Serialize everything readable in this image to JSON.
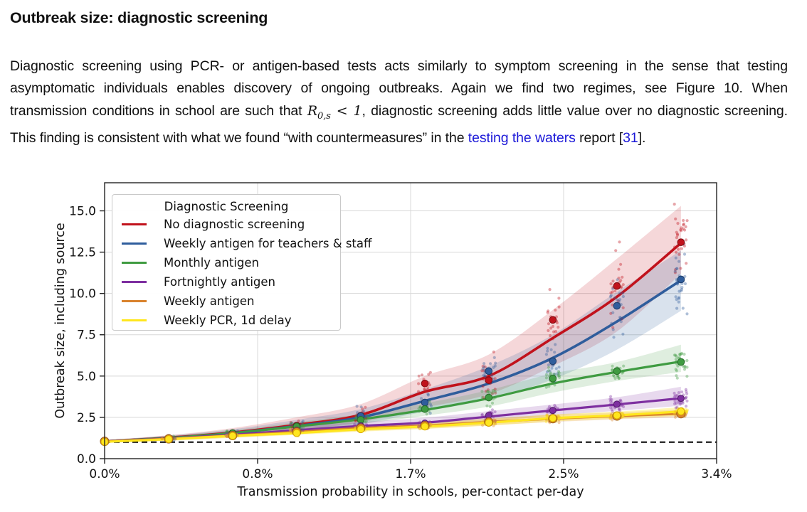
{
  "heading": "Outbreak size: diagnostic screening",
  "paragraph": {
    "segments": [
      {
        "k": "text",
        "t": "Diagnostic screening using PCR- or antigen-based tests acts similarly to symptom screening in the sense that testing asymptomatic individuals enables discovery of ongoing outbreaks. Again we find two regimes, see Figure 10. When transmission conditions in school are such that "
      },
      {
        "k": "math",
        "base": "R",
        "sub": "0,s",
        "rest": " < 1"
      },
      {
        "k": "text",
        "t": ", diagnostic screening adds little value over no diagnostic screening. This finding is consistent with what we found “with countermeasures” in the "
      },
      {
        "k": "link",
        "t": "testing the waters"
      },
      {
        "k": "text",
        "t": " report ["
      },
      {
        "k": "cite",
        "t": "31"
      },
      {
        "k": "text",
        "t": "]."
      }
    ],
    "link_color": "#1b18d8"
  },
  "chart_data": {
    "type": "line",
    "title": "",
    "xlabel": "Transmission probability in schools, per-contact per-day",
    "ylabel": "Outbreak size, including source",
    "xlim": [
      0,
      3.4
    ],
    "ylim": [
      0,
      16.7
    ],
    "grid": true,
    "xticks": [
      {
        "value": 0.0,
        "label": "0.0%"
      },
      {
        "value": 0.85,
        "label": "0.8%"
      },
      {
        "value": 1.7,
        "label": "1.7%"
      },
      {
        "value": 2.55,
        "label": "2.5%"
      },
      {
        "value": 3.4,
        "label": "3.4%"
      }
    ],
    "yticks": [
      {
        "value": 0.0,
        "label": "0.0"
      },
      {
        "value": 2.5,
        "label": "2.5"
      },
      {
        "value": 5.0,
        "label": "5.0"
      },
      {
        "value": 7.5,
        "label": "7.5"
      },
      {
        "value": 10.0,
        "label": "10.0"
      },
      {
        "value": 12.5,
        "label": "12.5"
      },
      {
        "value": 15.0,
        "label": "15.0"
      }
    ],
    "reference_line": {
      "y": 1.0,
      "style": "dashed",
      "color": "#000000"
    },
    "legend": {
      "title": "Diagnostic Screening",
      "position": "upper left"
    },
    "x": [
      0,
      0.356,
      0.711,
      1.067,
      1.423,
      1.779,
      2.134,
      2.49,
      2.846,
      3.202
    ],
    "series": [
      {
        "name": "No diagnostic screening",
        "color": "#c1121c",
        "edge": "#7f0b12",
        "band_alpha": 0.17,
        "means": [
          1.05,
          1.25,
          1.55,
          2.0,
          2.6,
          4.55,
          4.75,
          8.4,
          10.45,
          13.1
        ],
        "line": [
          1.05,
          1.27,
          1.58,
          2.05,
          2.65,
          4.05,
          5.0,
          7.3,
          9.8,
          13.05
        ],
        "band_lo": [
          1.0,
          1.15,
          1.4,
          1.75,
          2.2,
          3.1,
          3.9,
          5.6,
          7.7,
          11.2
        ],
        "band_hi": [
          1.12,
          1.42,
          1.85,
          2.5,
          3.3,
          5.0,
          6.3,
          9.0,
          12.1,
          15.3
        ]
      },
      {
        "name": "Weekly antigen for teachers & staff",
        "color": "#2f5d9c",
        "edge": "#1d3c69",
        "band_alpha": 0.18,
        "means": [
          1.05,
          1.24,
          1.52,
          1.95,
          2.58,
          3.4,
          5.3,
          5.9,
          9.25,
          10.85
        ],
        "line": [
          1.05,
          1.25,
          1.55,
          1.98,
          2.5,
          3.5,
          4.55,
          6.1,
          8.3,
          10.8
        ],
        "band_lo": [
          1.0,
          1.14,
          1.38,
          1.7,
          2.1,
          2.85,
          3.6,
          4.8,
          6.6,
          8.95
        ],
        "band_hi": [
          1.12,
          1.4,
          1.78,
          2.35,
          3.0,
          4.2,
          5.6,
          7.5,
          10.1,
          12.6
        ]
      },
      {
        "name": "Monthly antigen",
        "color": "#3f9b41",
        "edge": "#276c29",
        "band_alpha": 0.17,
        "means": [
          1.05,
          1.25,
          1.55,
          1.95,
          2.35,
          3.0,
          3.7,
          4.85,
          5.3,
          5.85
        ],
        "line": [
          1.05,
          1.25,
          1.55,
          1.95,
          2.38,
          2.95,
          3.65,
          4.55,
          5.25,
          5.88
        ],
        "band_lo": [
          1.0,
          1.15,
          1.4,
          1.72,
          2.1,
          2.6,
          3.15,
          4.0,
          4.7,
          5.25
        ],
        "band_hi": [
          1.12,
          1.38,
          1.72,
          2.2,
          2.7,
          3.35,
          4.15,
          5.15,
          5.85,
          6.9
        ]
      },
      {
        "name": "Fortnightly antigen",
        "color": "#7e2fa0",
        "edge": "#541f6b",
        "band_alpha": 0.18,
        "means": [
          1.05,
          1.22,
          1.45,
          1.72,
          1.98,
          2.15,
          2.62,
          2.92,
          3.3,
          3.65
        ],
        "line": [
          1.05,
          1.22,
          1.45,
          1.72,
          1.98,
          2.18,
          2.55,
          2.92,
          3.28,
          3.66
        ],
        "band_lo": [
          1.0,
          1.12,
          1.32,
          1.55,
          1.78,
          1.95,
          2.25,
          2.6,
          2.9,
          3.2
        ],
        "band_hi": [
          1.12,
          1.33,
          1.6,
          1.95,
          2.22,
          2.48,
          2.88,
          3.28,
          3.72,
          4.35
        ]
      },
      {
        "name": "Weekly antigen",
        "color": "#d9832e",
        "edge": "#9c5a1a",
        "band_alpha": 0.22,
        "means": [
          1.05,
          1.2,
          1.4,
          1.62,
          1.85,
          2.0,
          2.22,
          2.42,
          2.58,
          2.72
        ],
        "line": [
          1.05,
          1.2,
          1.4,
          1.62,
          1.85,
          2.0,
          2.22,
          2.42,
          2.58,
          2.72
        ],
        "band_lo": [
          1.0,
          1.1,
          1.28,
          1.48,
          1.68,
          1.82,
          2.02,
          2.22,
          2.38,
          2.5
        ],
        "band_hi": [
          1.12,
          1.3,
          1.55,
          1.8,
          2.05,
          2.22,
          2.45,
          2.65,
          2.8,
          2.98
        ]
      },
      {
        "name": "Weekly PCR, 1d delay",
        "color": "#ffe61e",
        "edge": "#d8a900",
        "band_alpha": 0.32,
        "means": [
          1.02,
          1.18,
          1.38,
          1.55,
          1.78,
          1.95,
          2.18,
          2.45,
          2.62,
          2.86
        ],
        "line": [
          1.02,
          1.18,
          1.38,
          1.55,
          1.78,
          1.95,
          2.18,
          2.45,
          2.62,
          2.86
        ],
        "band_lo": [
          0.98,
          1.08,
          1.26,
          1.44,
          1.64,
          1.8,
          2.0,
          2.25,
          2.42,
          2.6
        ],
        "band_hi": [
          1.1,
          1.28,
          1.52,
          1.72,
          1.95,
          2.15,
          2.4,
          2.68,
          2.85,
          3.12
        ]
      }
    ]
  }
}
